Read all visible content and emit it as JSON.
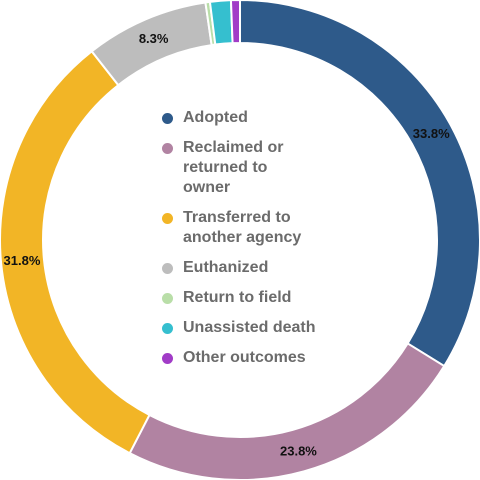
{
  "chart_data": {
    "type": "pie",
    "donut": true,
    "slices": [
      {
        "label": "Adopted",
        "value": 33.8,
        "display": "33.8%",
        "color": "#2e5a8a"
      },
      {
        "label": "Reclaimed or returned to owner",
        "value": 23.8,
        "display": "23.8%",
        "color": "#b183a2"
      },
      {
        "label": "Transferred to another agency",
        "value": 31.8,
        "display": "31.8%",
        "color": "#f2b526"
      },
      {
        "label": "Euthanized",
        "value": 8.3,
        "display": "8.3%",
        "color": "#bdbdbd"
      },
      {
        "label": "Return to field",
        "value": 0.3,
        "display": "",
        "color": "#b9dea8"
      },
      {
        "label": "Unassisted death",
        "value": 1.4,
        "display": "",
        "color": "#35bfcf"
      },
      {
        "label": "Other outcomes",
        "value": 0.6,
        "display": "",
        "color": "#a13cc7"
      }
    ],
    "legend": {
      "placement": "center",
      "entries": [
        {
          "text": "Adopted",
          "color": "#2e5a8a"
        },
        {
          "text": "Reclaimed or\nreturned to\nowner",
          "color": "#b183a2"
        },
        {
          "text": "Transferred to\nanother agency",
          "color": "#f2b526"
        },
        {
          "text": "Euthanized",
          "color": "#bdbdbd"
        },
        {
          "text": "Return to field",
          "color": "#b9dea8"
        },
        {
          "text": "Unassisted death",
          "color": "#35bfcf"
        },
        {
          "text": "Other outcomes",
          "color": "#a13cc7"
        }
      ]
    }
  }
}
